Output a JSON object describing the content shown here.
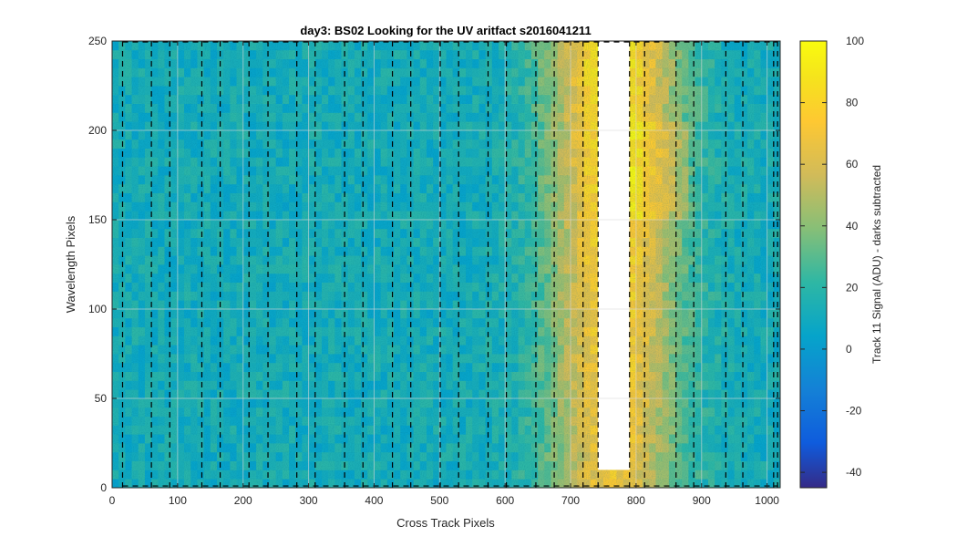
{
  "chart_data": {
    "type": "heatmap",
    "title": "day3: BS02  Looking for the UV aritfact  s2016041211",
    "xlabel": "Cross Track Pixels",
    "ylabel": "Wavelength Pixels",
    "xlim": [
      0,
      1020
    ],
    "ylim": [
      0,
      250
    ],
    "xticks": [
      0,
      100,
      200,
      300,
      400,
      500,
      600,
      700,
      800,
      900,
      1000
    ],
    "yticks": [
      0,
      50,
      100,
      150,
      200,
      250
    ],
    "grid": true,
    "colormap": "parula",
    "colorbar": {
      "label": "Track 11 Signal (ADU) - darks subtracted",
      "range": [
        -45,
        100
      ],
      "ticks": [
        -40,
        -20,
        0,
        20,
        40,
        60,
        80,
        100
      ]
    },
    "track_boundaries_x": [
      16,
      60,
      88,
      137,
      165,
      209,
      238,
      282,
      310,
      355,
      383,
      428,
      456,
      501,
      529,
      574,
      602,
      647,
      675,
      719,
      742,
      790,
      813,
      861,
      888,
      937,
      963,
      1010,
      1016
    ],
    "saturated_region": {
      "x": [
        742,
        790
      ],
      "y": [
        10,
        250
      ]
    },
    "signal_profile": {
      "background_adu": 12,
      "plume_center_x": 766,
      "plume_peak_adu": 80
    },
    "colors": {
      "low": "#352a87",
      "mid": "#12bea3",
      "high": "#f9fb0e",
      "background": "#1aa0cf",
      "saturated": "#ffffff",
      "boundary_line": "#000000"
    }
  }
}
